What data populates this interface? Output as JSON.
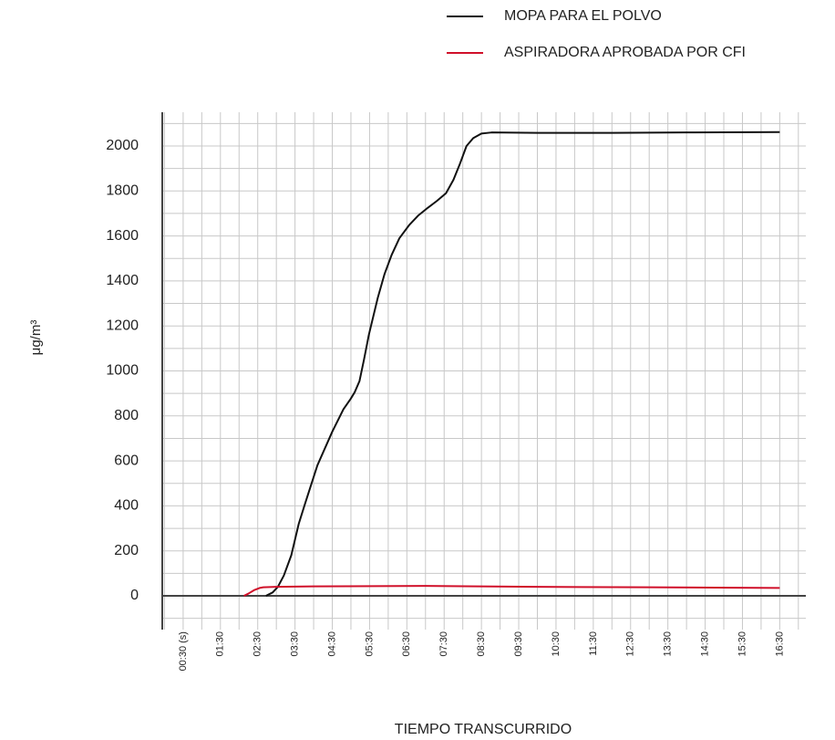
{
  "chart_data": {
    "type": "line",
    "xlabel": "TIEMPO TRANSCURRIDO",
    "ylabel": "μg/m³",
    "xlim": [
      -0.06,
      17.2
    ],
    "xticks": [
      {
        "value": 0.5,
        "label": "00:30 (s)"
      },
      {
        "value": 1.5,
        "label": "01:30"
      },
      {
        "value": 2.5,
        "label": "02:30"
      },
      {
        "value": 3.5,
        "label": "03:30"
      },
      {
        "value": 4.5,
        "label": "04:30"
      },
      {
        "value": 5.5,
        "label": "05:30"
      },
      {
        "value": 6.5,
        "label": "06:30"
      },
      {
        "value": 7.5,
        "label": "07:30"
      },
      {
        "value": 8.5,
        "label": "08:30"
      },
      {
        "value": 9.5,
        "label": "09:30"
      },
      {
        "value": 10.5,
        "label": "10:30"
      },
      {
        "value": 11.5,
        "label": "11:30"
      },
      {
        "value": 12.5,
        "label": "12:30"
      },
      {
        "value": 13.5,
        "label": "13:30"
      },
      {
        "value": 14.5,
        "label": "14:30"
      },
      {
        "value": 15.5,
        "label": "15:30"
      },
      {
        "value": 16.5,
        "label": "16:30"
      }
    ],
    "ylim": [
      -150,
      2150
    ],
    "yticks": [
      0,
      200,
      400,
      600,
      800,
      1000,
      1200,
      1400,
      1600,
      1800,
      2000
    ],
    "grid": true,
    "minor_grid": true,
    "legend": "top-right",
    "series": [
      {
        "name": "MOPA PARA EL POLVO",
        "color": "#111111",
        "x": [
          2.72,
          2.9,
          3.04,
          3.2,
          3.4,
          3.6,
          3.77,
          4.1,
          4.5,
          4.8,
          4.99,
          5.1,
          5.23,
          5.35,
          5.48,
          5.72,
          5.9,
          6.09,
          6.3,
          6.57,
          6.8,
          7.06,
          7.3,
          7.55,
          7.75,
          7.91,
          8.1,
          8.28,
          8.5,
          8.77,
          10,
          12,
          14,
          16.5
        ],
        "values": [
          0,
          15,
          40,
          90,
          180,
          320,
          410,
          580,
          730,
          830,
          875,
          905,
          955,
          1050,
          1160,
          1325,
          1430,
          1515,
          1590,
          1650,
          1690,
          1725,
          1755,
          1790,
          1850,
          1915,
          2000,
          2035,
          2055,
          2060,
          2058,
          2058,
          2060,
          2062
        ]
      },
      {
        "name": "ASPIRADORA APROBADA POR CFI",
        "color": "#d0102a",
        "x": [
          2.13,
          2.25,
          2.4,
          2.55,
          2.65,
          3,
          4,
          7,
          10,
          13,
          16.5
        ],
        "values": [
          0,
          10,
          25,
          35,
          38,
          40,
          42,
          44,
          40,
          38,
          35
        ]
      }
    ]
  }
}
